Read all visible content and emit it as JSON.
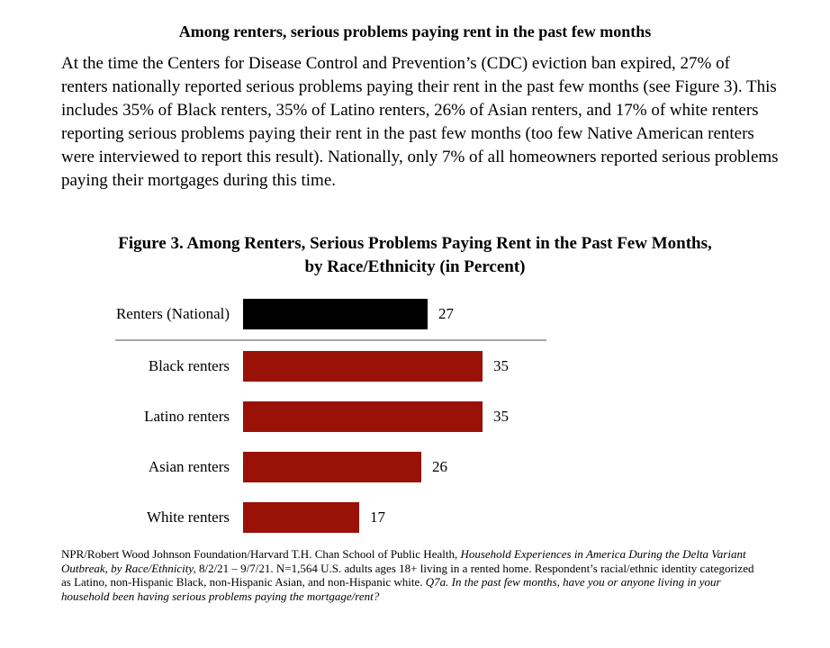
{
  "document": {
    "title": "Among renters, serious problems paying rent in the past few months",
    "paragraph": "At the time the Centers for Disease Control and Prevention’s (CDC) eviction ban expired, 27% of renters nationally reported serious problems paying their rent in the past few months (see Figure 3). This includes 35% of Black renters, 35% of Latino renters, 26% of Asian renters, and 17% of white renters reporting serious problems paying their rent in the past few months (too few Native American renters were interviewed to report this result). Nationally, only 7% of all homeowners reported serious problems paying their mortgages during this time."
  },
  "figure": {
    "title_line1": "Figure 3. Among Renters, Serious Problems Paying Rent in the Past Few Months,",
    "title_line2": "by Race/Ethnicity (in Percent)"
  },
  "chart_data": {
    "type": "bar",
    "orientation": "horizontal",
    "title": "Figure 3. Among Renters, Serious Problems Paying Rent in the Past Few Months, by Race/Ethnicity (in Percent)",
    "categories": [
      "Renters (National)",
      "Black renters",
      "Latino renters",
      "Asian renters",
      "White renters"
    ],
    "values": [
      27,
      35,
      35,
      26,
      17
    ],
    "bar_colors": [
      "#000000",
      "#991107",
      "#991107",
      "#991107",
      "#991107"
    ],
    "xlabel": "",
    "ylabel": "",
    "xlim": [
      0,
      40
    ],
    "grid": false,
    "legend": false,
    "data_labels": true,
    "separator_after_index": 0
  },
  "footnote": {
    "segments": [
      {
        "text": "NPR/Robert Wood Johnson Foundation/Harvard T.H. Chan School of Public Health, ",
        "italic": false
      },
      {
        "text": "Household Experiences in America During the Delta Variant Outbreak, by Race/Ethnicity,",
        "italic": true
      },
      {
        "text": " 8/2/21 – 9/7/21. N=1,564 U.S. adults ages 18+ living in a rented home. Respondent’s racial/ethnic identity categorized as Latino, non-Hispanic Black, non-Hispanic Asian, and non-Hispanic white. ",
        "italic": false
      },
      {
        "text": "Q7a. In the past few months, have you or anyone living in your household been having serious problems paying the mortgage/rent?",
        "italic": true
      }
    ]
  },
  "colors": {
    "bar_black": "#000000",
    "bar_red": "#991107",
    "separator_gray": "#a8a8a8",
    "text": "#000000",
    "background": "#ffffff"
  }
}
